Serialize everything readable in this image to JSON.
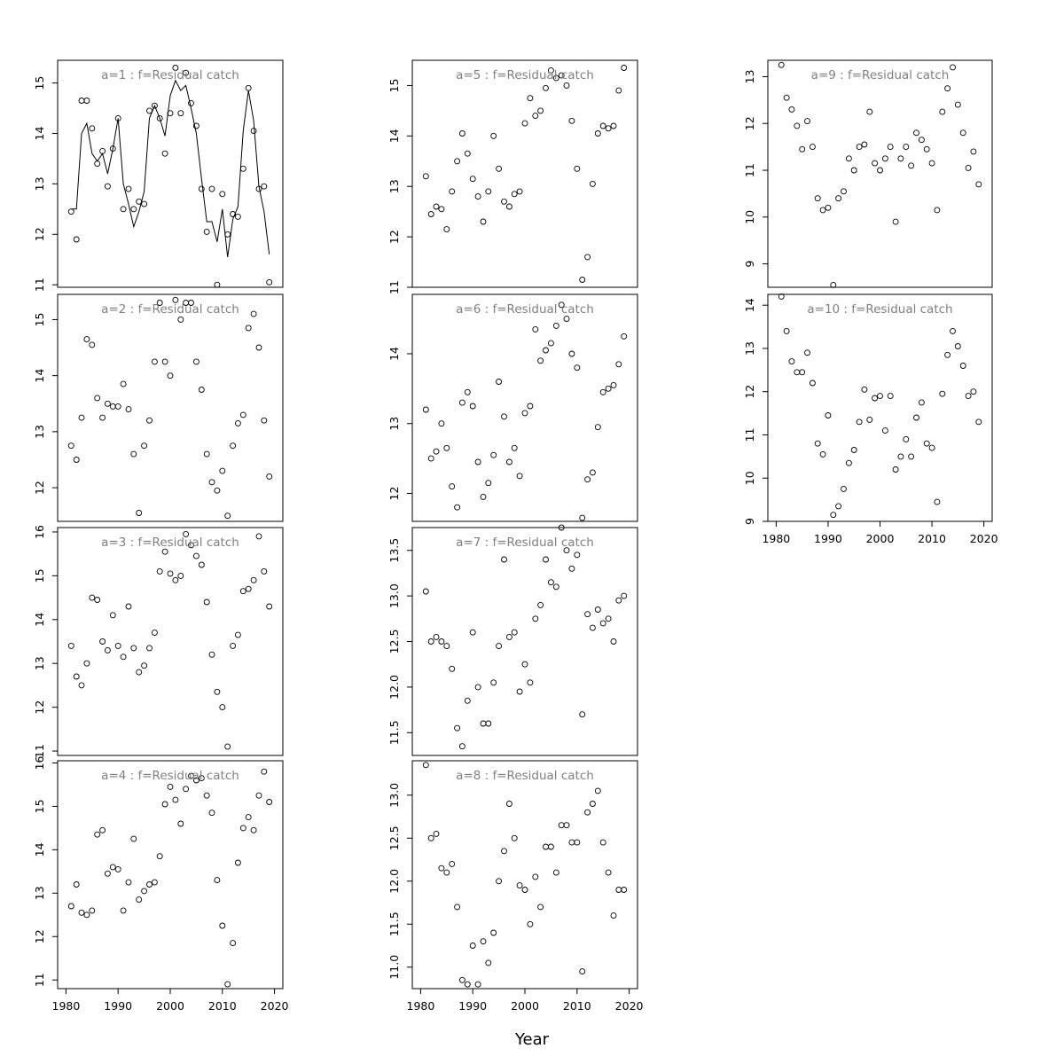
{
  "chart_data": {
    "type": "scatter",
    "xlabel": "Year",
    "xlim": [
      1980,
      2020
    ],
    "xticks": [
      1980,
      1990,
      2000,
      2010,
      2020
    ],
    "years": [
      1981,
      1982,
      1983,
      1984,
      1985,
      1986,
      1987,
      1988,
      1989,
      1990,
      1991,
      1992,
      1993,
      1994,
      1995,
      1996,
      1997,
      1998,
      1999,
      2000,
      2001,
      2002,
      2003,
      2004,
      2005,
      2006,
      2007,
      2008,
      2009,
      2010,
      2011,
      2012,
      2013,
      2014,
      2015,
      2016,
      2017,
      2018,
      2019
    ],
    "panels": [
      {
        "title": "a=1  :  f=Residual catch",
        "ylim": [
          10.95,
          15.45
        ],
        "yticks": [
          11,
          12,
          13,
          14,
          15
        ],
        "observed": [
          12.45,
          11.9,
          14.65,
          14.65,
          14.1,
          13.4,
          13.65,
          12.95,
          13.7,
          14.3,
          12.5,
          12.9,
          12.5,
          12.65,
          12.6,
          14.45,
          14.55,
          14.3,
          13.6,
          14.4,
          15.3,
          14.4,
          15.2,
          14.6,
          14.15,
          12.9,
          12.05,
          12.9,
          11.0,
          12.8,
          12.0,
          12.4,
          12.35,
          13.3,
          14.9,
          14.05,
          12.9,
          12.95,
          11.05
        ],
        "fitted": [
          12.5,
          12.5,
          14.0,
          14.2,
          13.6,
          13.45,
          13.6,
          13.2,
          13.7,
          14.3,
          13.0,
          12.6,
          12.15,
          12.45,
          12.85,
          14.3,
          14.55,
          14.3,
          13.95,
          14.75,
          15.05,
          14.85,
          14.95,
          14.5,
          14.0,
          13.1,
          12.25,
          12.25,
          11.85,
          12.5,
          11.55,
          12.3,
          12.55,
          14.05,
          14.85,
          14.25,
          12.95,
          12.45,
          11.6
        ]
      },
      {
        "title": "a=2  :  f=Residual catch",
        "ylim": [
          11.4,
          15.45
        ],
        "yticks": [
          12,
          13,
          14,
          15
        ],
        "observed": [
          12.75,
          12.5,
          13.25,
          14.65,
          14.55,
          13.6,
          13.25,
          13.5,
          13.45,
          13.45,
          13.85,
          13.4,
          12.6,
          11.55,
          12.75,
          13.2,
          14.25,
          15.3,
          14.25,
          14.0,
          15.35,
          15.0,
          15.3,
          15.3,
          14.25,
          13.75,
          12.6,
          12.1,
          11.95,
          12.3,
          11.5,
          12.75,
          13.15,
          13.3,
          14.85,
          15.1,
          14.5,
          13.2,
          12.2
        ]
      },
      {
        "title": "a=3  :  f=Residual catch",
        "ylim": [
          10.9,
          16.1
        ],
        "yticks": [
          11,
          12,
          13,
          14,
          15,
          16
        ],
        "observed": [
          13.4,
          12.7,
          12.5,
          13.0,
          14.5,
          14.45,
          13.5,
          13.3,
          14.1,
          13.4,
          13.15,
          14.3,
          13.35,
          12.8,
          12.95,
          13.35,
          13.7,
          15.1,
          15.55,
          15.05,
          14.9,
          15.0,
          15.95,
          15.7,
          15.45,
          15.25,
          14.4,
          13.2,
          12.35,
          12.0,
          11.1,
          13.4,
          13.65,
          14.65,
          14.7,
          14.9,
          15.9,
          15.1,
          14.3
        ]
      },
      {
        "title": "a=4  :  f=Residual catch",
        "ylim": [
          10.8,
          16.05
        ],
        "yticks": [
          11,
          12,
          13,
          14,
          15,
          16
        ],
        "observed": [
          12.7,
          13.2,
          12.55,
          12.5,
          12.6,
          14.35,
          14.45,
          13.45,
          13.6,
          13.55,
          12.6,
          13.25,
          14.25,
          12.85,
          13.05,
          13.2,
          13.25,
          13.85,
          15.05,
          15.45,
          15.15,
          14.6,
          15.4,
          15.7,
          15.6,
          15.65,
          15.25,
          14.85,
          13.3,
          12.25,
          10.9,
          11.85,
          13.7,
          14.5,
          14.75,
          14.45,
          15.25,
          15.8,
          15.1
        ]
      },
      {
        "title": "a=5  :  f=Residual catch",
        "ylim": [
          11.0,
          15.5
        ],
        "yticks": [
          11,
          12,
          13,
          14,
          15
        ],
        "observed": [
          13.2,
          12.45,
          12.6,
          12.55,
          12.15,
          12.9,
          13.5,
          14.05,
          13.65,
          13.15,
          12.8,
          12.3,
          12.9,
          14.0,
          13.35,
          12.7,
          12.6,
          12.85,
          12.9,
          14.25,
          14.75,
          14.4,
          14.5,
          14.95,
          15.3,
          15.15,
          15.2,
          15.0,
          14.3,
          13.35,
          11.15,
          11.6,
          13.05,
          14.05,
          14.2,
          14.15,
          14.2,
          14.9,
          15.35
        ]
      },
      {
        "title": "a=6  :  f=Residual catch",
        "ylim": [
          11.6,
          14.85
        ],
        "yticks": [
          12.0,
          13.0,
          14.0
        ],
        "observed": [
          13.2,
          12.5,
          12.6,
          13.0,
          12.65,
          12.1,
          11.8,
          13.3,
          13.45,
          13.25,
          12.45,
          11.95,
          12.15,
          12.55,
          13.6,
          13.1,
          12.45,
          12.65,
          12.25,
          13.15,
          13.25,
          14.35,
          13.9,
          14.05,
          14.15,
          14.4,
          14.7,
          14.5,
          14.0,
          13.8,
          11.65,
          12.2,
          12.3,
          12.95,
          13.45,
          13.5,
          13.55,
          13.85,
          14.25
        ]
      },
      {
        "title": "a=7  :  f=Residual catch",
        "ylim": [
          11.25,
          13.75
        ],
        "yticks": [
          11.5,
          12.0,
          12.5,
          13.0,
          13.5
        ],
        "observed": [
          13.05,
          12.5,
          12.55,
          12.5,
          12.45,
          12.2,
          11.55,
          11.35,
          11.85,
          12.6,
          12.0,
          11.6,
          11.6,
          12.05,
          12.45,
          13.4,
          12.55,
          12.6,
          11.95,
          12.25,
          12.05,
          12.75,
          12.9,
          13.4,
          13.15,
          13.1,
          13.75,
          13.5,
          13.3,
          13.45,
          11.7,
          12.8,
          12.65,
          12.85,
          12.7,
          12.75,
          12.5,
          12.95,
          13.0
        ]
      },
      {
        "title": "a=8  :  f=Residual catch",
        "ylim": [
          10.75,
          13.4
        ],
        "yticks": [
          11.0,
          11.5,
          12.0,
          12.5,
          13.0
        ],
        "observed": [
          13.35,
          12.5,
          12.55,
          12.15,
          12.1,
          12.2,
          11.7,
          10.85,
          10.8,
          11.25,
          10.8,
          11.3,
          11.05,
          11.4,
          12.0,
          12.35,
          12.9,
          12.5,
          11.95,
          11.9,
          11.5,
          12.05,
          11.7,
          12.4,
          12.4,
          12.1,
          12.65,
          12.65,
          12.45,
          12.45,
          10.95,
          12.8,
          12.9,
          13.05,
          12.45,
          12.1,
          11.6,
          11.9,
          11.9
        ]
      },
      {
        "title": "a=9  :  f=Residual catch",
        "ylim": [
          8.5,
          13.35
        ],
        "yticks": [
          9,
          10,
          11,
          12,
          13
        ],
        "observed": [
          13.25,
          12.55,
          12.3,
          11.95,
          11.45,
          12.05,
          11.5,
          10.4,
          10.15,
          10.2,
          8.55,
          10.4,
          10.55,
          11.25,
          11.0,
          11.5,
          11.55,
          12.25,
          11.15,
          11.0,
          11.25,
          11.5,
          9.9,
          11.25,
          11.5,
          11.1,
          11.8,
          11.65,
          11.45,
          11.15,
          10.15,
          12.25,
          12.75,
          13.2,
          12.4,
          11.8,
          11.05,
          11.4,
          10.7
        ]
      },
      {
        "title": "a=10  :  f=Residual catch",
        "ylim": [
          9.0,
          14.25
        ],
        "yticks": [
          9,
          10,
          11,
          12,
          13,
          14
        ],
        "observed": [
          14.2,
          13.4,
          12.7,
          12.45,
          12.45,
          12.9,
          12.2,
          10.8,
          10.55,
          11.45,
          9.15,
          9.35,
          9.75,
          10.35,
          10.65,
          11.3,
          12.05,
          11.35,
          11.85,
          11.9,
          11.1,
          11.9,
          10.2,
          10.5,
          10.9,
          10.5,
          11.4,
          11.75,
          10.8,
          10.7,
          9.45,
          11.95,
          12.85,
          13.4,
          13.05,
          12.6,
          11.9,
          12.0,
          11.3
        ]
      }
    ]
  }
}
